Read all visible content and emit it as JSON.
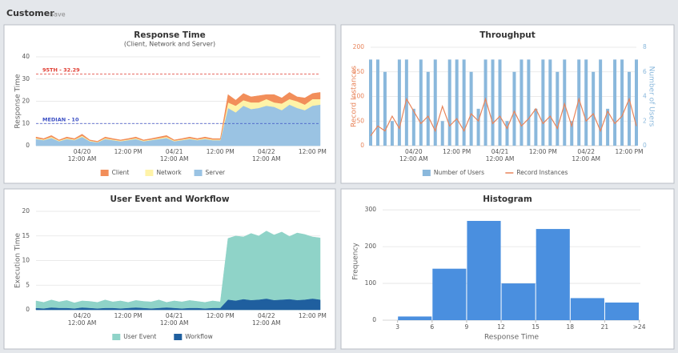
{
  "header": {
    "title": "Customer",
    "action": "Save"
  },
  "chart_data": [
    {
      "type": "area",
      "title": "Response Time",
      "subtitle": "(Client, Network and Server)",
      "ylabel": "Response Time",
      "stacked": true,
      "legend": "bottom",
      "grid": true,
      "ylim": [
        0,
        40
      ],
      "yticks": [
        0,
        10,
        20,
        30,
        40
      ],
      "categories": [
        null,
        null,
        null,
        null,
        null,
        null,
        "04/20\n12:00 AM",
        null,
        null,
        null,
        null,
        null,
        "12:00 PM",
        null,
        null,
        null,
        null,
        null,
        "04/21\n12:00 AM",
        null,
        null,
        null,
        null,
        null,
        "12:00 PM",
        null,
        null,
        null,
        null,
        null,
        "04/22\n12:00 AM",
        null,
        null,
        null,
        null,
        null,
        "12:00 PM",
        null
      ],
      "annotations": [
        {
          "label": "95TH - 32.29",
          "value": 32.29,
          "color": "#e03c31"
        },
        {
          "label": "MEDIAN - 10",
          "value": 10,
          "color": "#3b4fc4"
        }
      ],
      "series": [
        {
          "name": "Client",
          "color": "#f28e5a",
          "values": [
            0.5,
            0.4,
            0.6,
            0.3,
            0.5,
            0.4,
            0.7,
            0.3,
            0.3,
            0.5,
            0.4,
            0.3,
            0.4,
            0.5,
            0.3,
            0.4,
            0.5,
            0.6,
            0.3,
            0.4,
            0.5,
            0.4,
            0.5,
            0.4,
            0.4,
            3.5,
            2.5,
            3,
            2.5,
            3,
            2,
            3.5,
            2.5,
            3,
            2,
            3,
            2.5,
            3
          ]
        },
        {
          "name": "Network",
          "color": "#fff3a8",
          "values": [
            0.4,
            0.3,
            0.5,
            0.3,
            0.4,
            0.3,
            0.5,
            0.3,
            0.2,
            0.4,
            0.3,
            0.3,
            0.3,
            0.4,
            0.3,
            0.3,
            0.4,
            0.5,
            0.3,
            0.3,
            0.4,
            0.3,
            0.4,
            0.3,
            0.3,
            2.5,
            3,
            2.5,
            3,
            2.5,
            3,
            2,
            3,
            2.5,
            3,
            2.5,
            3,
            2.5
          ]
        },
        {
          "name": "Server",
          "color": "#9ac3e3",
          "values": [
            3,
            2.5,
            3.5,
            2,
            3,
            2.5,
            4,
            2,
            1.5,
            3,
            2.5,
            2,
            2.5,
            3,
            2,
            2.5,
            3,
            3.5,
            2,
            2.5,
            3,
            2.5,
            3,
            2.5,
            2.5,
            17,
            15,
            18,
            16.5,
            17,
            18,
            17.5,
            16,
            18.5,
            17,
            16,
            18,
            18.5
          ]
        }
      ]
    },
    {
      "type": "bar-line",
      "title": "Throughput",
      "ylabel": "Record Instances",
      "y2label": "Number of Users",
      "legend": "bottom",
      "grid": true,
      "ylim": [
        0,
        200
      ],
      "yticks": [
        0,
        50,
        100,
        150,
        200
      ],
      "y2lim": [
        0,
        8
      ],
      "y2ticks": [
        0,
        2,
        4,
        6,
        8
      ],
      "categories": [
        null,
        null,
        null,
        null,
        null,
        null,
        "04/20\n12:00 AM",
        null,
        null,
        null,
        null,
        null,
        "12:00 PM",
        null,
        null,
        null,
        null,
        null,
        "04/21\n12:00 AM",
        null,
        null,
        null,
        null,
        null,
        "12:00 PM",
        null,
        null,
        null,
        null,
        null,
        "04/22\n12:00 AM",
        null,
        null,
        null,
        null,
        null,
        "12:00 PM",
        null
      ],
      "series": [
        {
          "name": "Number of Users",
          "color": "#8ab8dc",
          "kind": "bar",
          "axis": "y2",
          "values": [
            7,
            7,
            6,
            2,
            7,
            7,
            3,
            7,
            6,
            7,
            2,
            7,
            7,
            7,
            6,
            3,
            7,
            7,
            7,
            2,
            6,
            7,
            7,
            3,
            7,
            7,
            6,
            7,
            2,
            7,
            7,
            6,
            7,
            3,
            7,
            7,
            6,
            7
          ]
        },
        {
          "name": "Record Instances",
          "color": "#e8845a",
          "kind": "line",
          "values": [
            20,
            40,
            30,
            60,
            35,
            95,
            70,
            45,
            60,
            30,
            80,
            40,
            55,
            30,
            65,
            50,
            95,
            45,
            60,
            35,
            70,
            40,
            55,
            75,
            45,
            60,
            35,
            85,
            40,
            95,
            50,
            65,
            30,
            70,
            45,
            60,
            95,
            40
          ]
        }
      ]
    },
    {
      "type": "area",
      "title": "User Event and Workflow",
      "ylabel": "Execution Time",
      "stacked": false,
      "legend": "bottom",
      "grid": true,
      "ylim": [
        0,
        20
      ],
      "yticks": [
        0,
        5,
        10,
        15,
        20
      ],
      "categories": [
        null,
        null,
        null,
        null,
        null,
        null,
        "04/20\n12:00 AM",
        null,
        null,
        null,
        null,
        null,
        "12:00 PM",
        null,
        null,
        null,
        null,
        null,
        "04/21\n12:00 AM",
        null,
        null,
        null,
        null,
        null,
        "12:00 PM",
        null,
        null,
        null,
        null,
        null,
        "04/22\n12:00 AM",
        null,
        null,
        null,
        null,
        null,
        "12:00 PM",
        null
      ],
      "series": [
        {
          "name": "User Event",
          "color": "#8fd3c8",
          "values": [
            1.8,
            1.5,
            2,
            1.6,
            1.9,
            1.4,
            1.8,
            1.7,
            1.5,
            2,
            1.6,
            1.8,
            1.5,
            1.9,
            1.7,
            1.6,
            2,
            1.5,
            1.8,
            1.6,
            1.9,
            1.7,
            1.5,
            1.8,
            1.6,
            14.5,
            15,
            14.8,
            15.5,
            15,
            16,
            15.2,
            15.8,
            14.9,
            15.6,
            15.3,
            14.8,
            14.6
          ]
        },
        {
          "name": "Workflow",
          "color": "#1f5f9f",
          "values": [
            0.3,
            0.2,
            0.4,
            0.3,
            0.3,
            0.2,
            0.4,
            0.3,
            0.2,
            0.3,
            0.3,
            0.2,
            0.3,
            0.4,
            0.3,
            0.2,
            0.3,
            0.4,
            0.3,
            0.2,
            0.3,
            0.3,
            0.2,
            0.3,
            0.3,
            2,
            1.8,
            2.1,
            1.9,
            2,
            2.2,
            1.9,
            2,
            2.1,
            1.9,
            2,
            2.2,
            2
          ]
        }
      ]
    },
    {
      "type": "histogram",
      "title": "Histogram",
      "xlabel": "Response Time",
      "ylabel": "Frequency",
      "color": "#4a8fdf",
      "grid": true,
      "bins": [
        3,
        6,
        9,
        12,
        15,
        18,
        21,
        24
      ],
      "counts": [
        10,
        140,
        270,
        100,
        248,
        60,
        48
      ],
      "xlim": [
        1.7,
        24.1
      ],
      "xticks": [
        3,
        6,
        9,
        12,
        15,
        18,
        21,
        {
          "value": 24,
          "label": ">24"
        }
      ],
      "ylim": [
        0,
        320
      ],
      "yticks": [
        0,
        100,
        200,
        300
      ]
    }
  ]
}
